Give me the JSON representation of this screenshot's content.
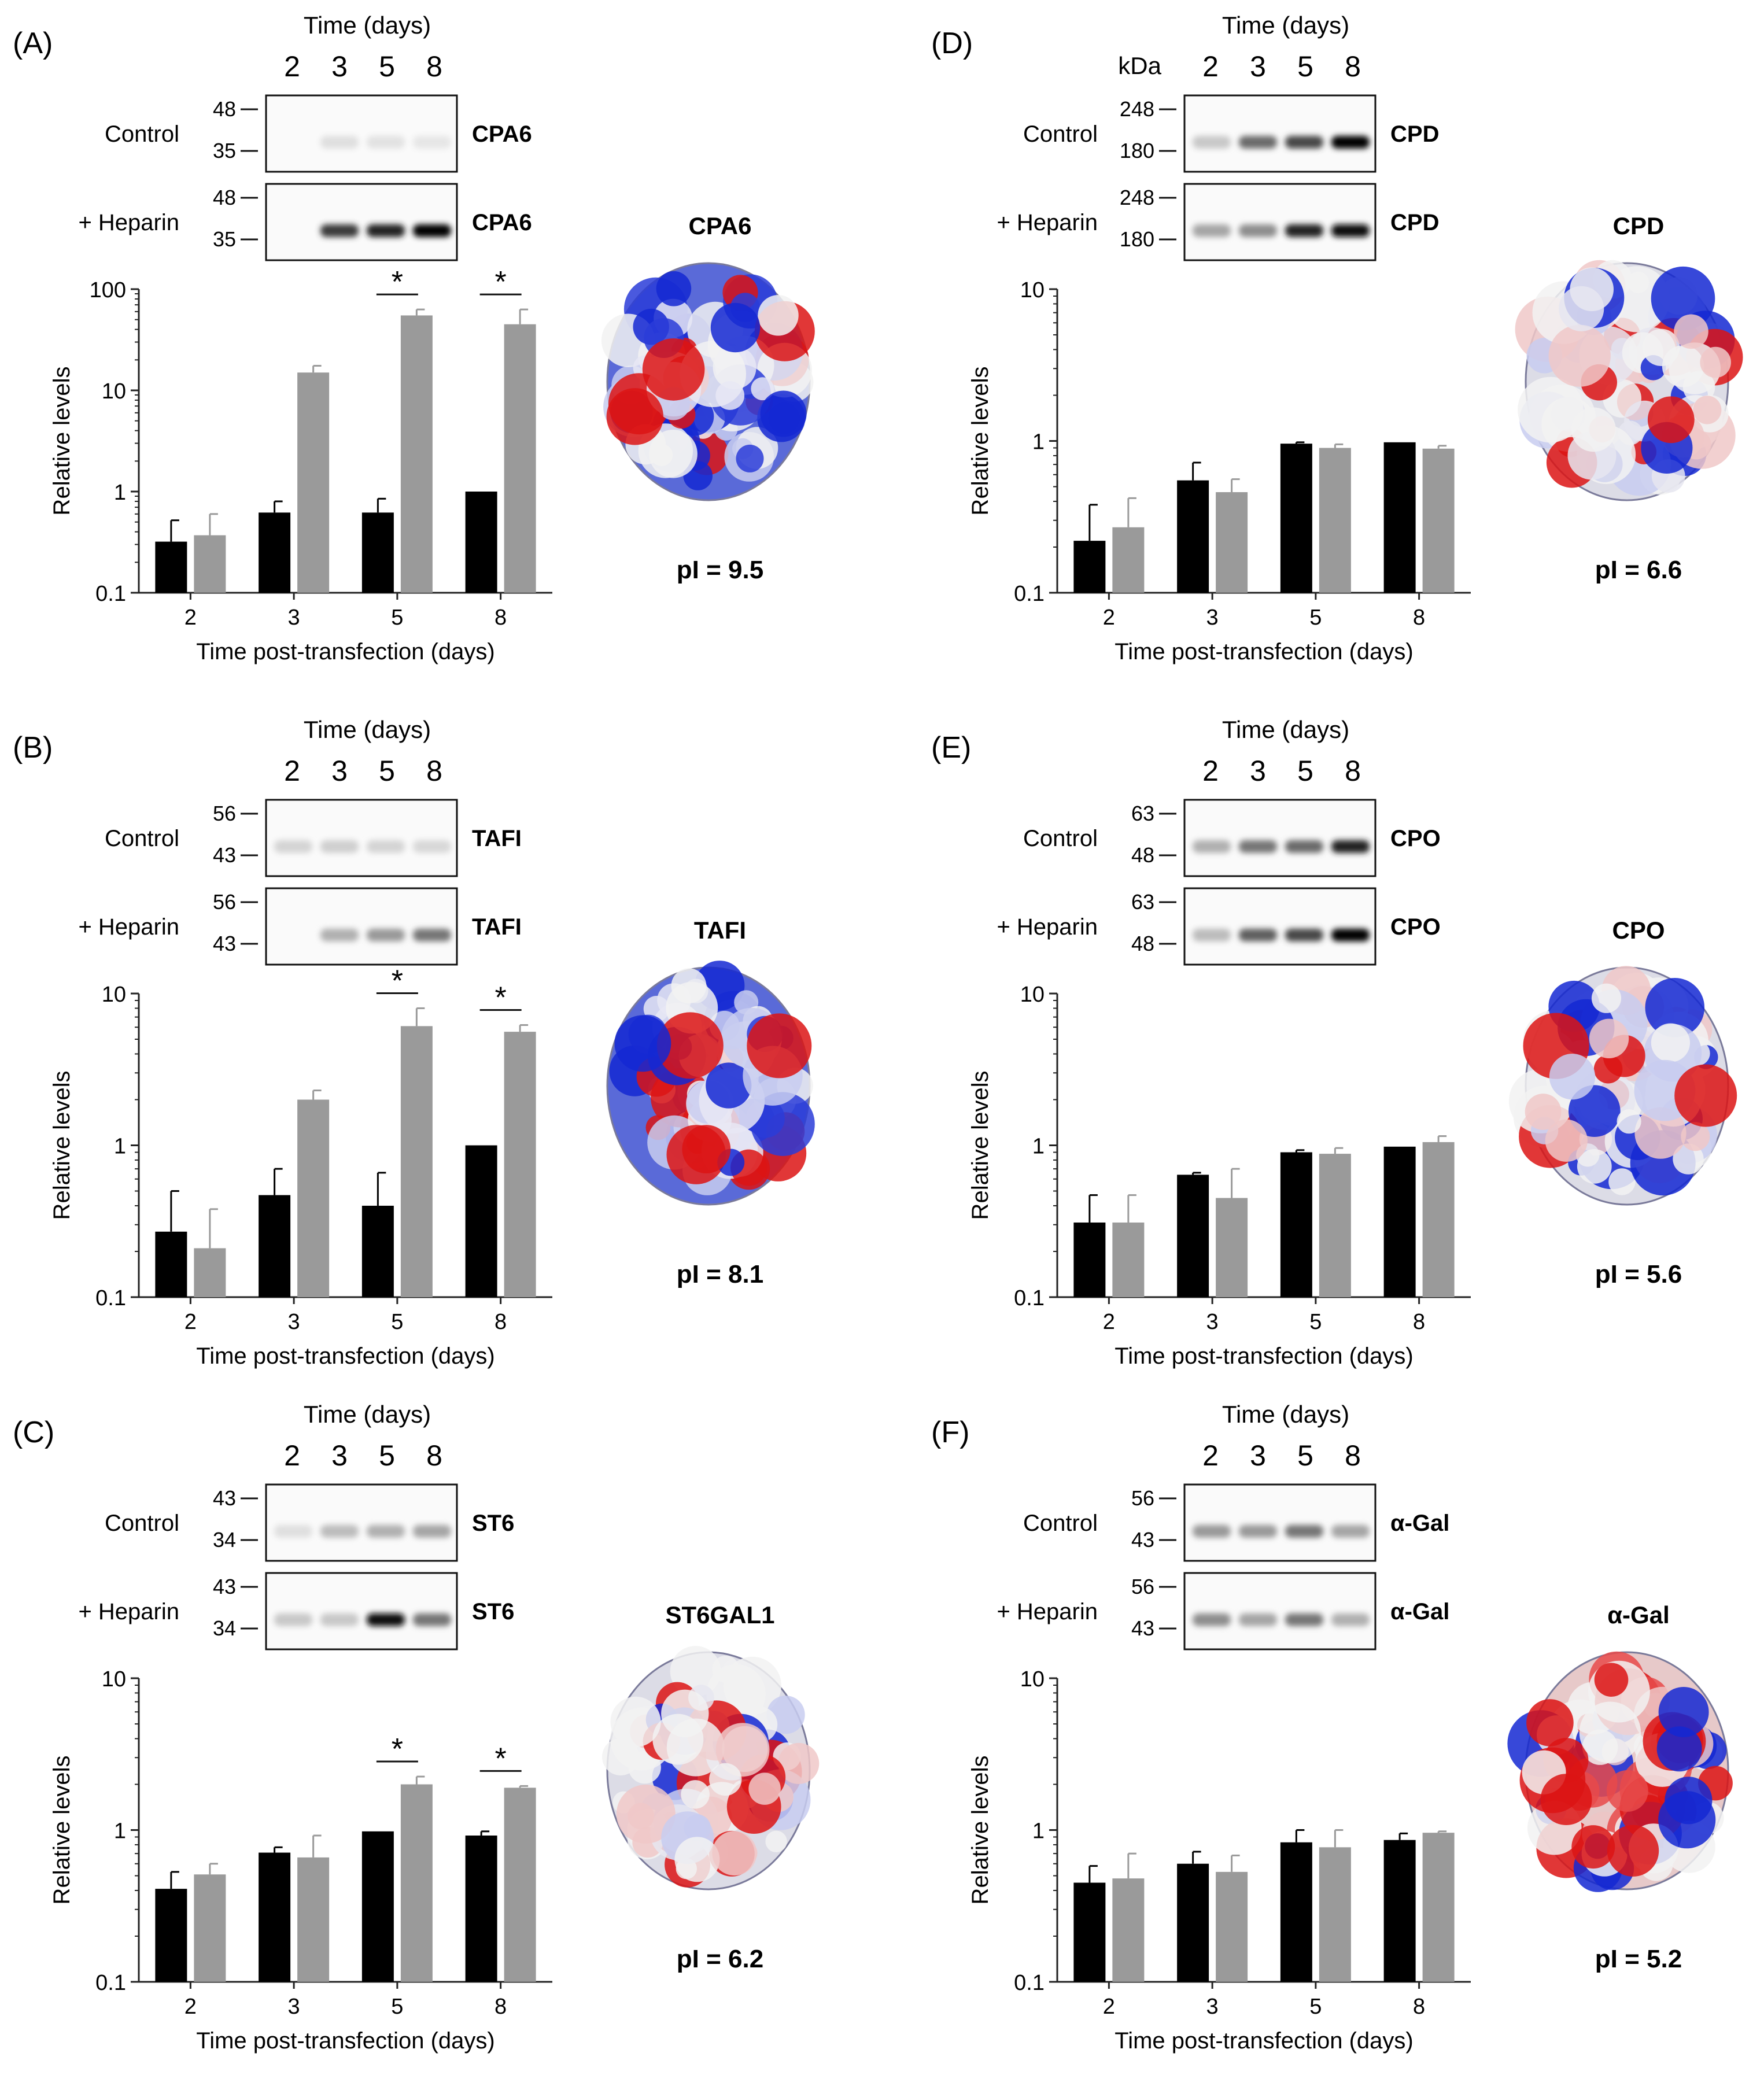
{
  "colors": {
    "control_bar": "#000000",
    "heparin_bar": "#9a9a9a",
    "positive_surface": "#1428d2",
    "negative_surface": "#dc1414",
    "neutral_surface": "#f2f2f2"
  },
  "panels": [
    {
      "letter": "(A)",
      "blot": {
        "time_title": "Time (days)",
        "kda_label": "",
        "lanes": [
          "2",
          "3",
          "5",
          "8"
        ],
        "control": {
          "row_label": "Control",
          "protein": "CPA6",
          "markers": [
            "48",
            "35"
          ],
          "intensity": [
            0.0,
            0.05,
            0.04,
            0.02
          ]
        },
        "heparin": {
          "row_label": "+ Heparin",
          "protein": "CPA6",
          "markers": [
            "48",
            "35"
          ],
          "intensity": [
            0.0,
            0.75,
            0.85,
            1.0
          ]
        }
      },
      "structure": {
        "name": "CPA6",
        "pi_text": "pI = 9.5",
        "charge": "positive"
      },
      "chart_data": {
        "type": "bar",
        "xlabel": "Time post-transfection (days)",
        "ylabel": "Relative levels",
        "yscale": "log",
        "ylim": [
          0.1,
          100
        ],
        "yticks": [
          "0.1",
          "1",
          "10",
          "100"
        ],
        "categories": [
          "2",
          "3",
          "5",
          "8"
        ],
        "series": [
          {
            "color": "#000000",
            "values": [
              0.32,
              0.62,
              0.62,
              1.0
            ],
            "errors_upper": [
              0.52,
              0.8,
              0.85,
              1.0
            ]
          },
          {
            "color": "#9a9a9a",
            "values": [
              0.37,
              15,
              55,
              45
            ],
            "errors_upper": [
              0.6,
              17.5,
              63,
              63
            ]
          }
        ],
        "significance": [
          "",
          "",
          "*",
          "*"
        ]
      }
    },
    {
      "letter": "(B)",
      "blot": {
        "time_title": "Time (days)",
        "kda_label": "",
        "lanes": [
          "2",
          "3",
          "5",
          "8"
        ],
        "control": {
          "row_label": "Control",
          "protein": "TAFI",
          "markers": [
            "56",
            "43"
          ],
          "intensity": [
            0.1,
            0.12,
            0.1,
            0.08
          ]
        },
        "heparin": {
          "row_label": "+ Heparin",
          "protein": "TAFI",
          "markers": [
            "56",
            "43"
          ],
          "intensity": [
            0.0,
            0.25,
            0.35,
            0.5
          ]
        }
      },
      "structure": {
        "name": "TAFI",
        "pi_text": "pI = 8.1",
        "charge": "positive"
      },
      "chart_data": {
        "type": "bar",
        "xlabel": "Time post-transfection (days)",
        "ylabel": "Relative levels",
        "yscale": "log",
        "ylim": [
          0.1,
          10
        ],
        "yticks": [
          "0.1",
          "1",
          "10"
        ],
        "categories": [
          "2",
          "3",
          "5",
          "8"
        ],
        "series": [
          {
            "color": "#000000",
            "values": [
              0.27,
              0.47,
              0.4,
              1.0
            ],
            "errors_upper": [
              0.5,
              0.7,
              0.66,
              1.0
            ]
          },
          {
            "color": "#9a9a9a",
            "values": [
              0.21,
              2.0,
              6.1,
              5.6
            ],
            "errors_upper": [
              0.38,
              2.3,
              8.0,
              6.2
            ]
          }
        ],
        "significance": [
          "",
          "",
          "*",
          "*"
        ]
      }
    },
    {
      "letter": "(C)",
      "blot": {
        "time_title": "Time (days)",
        "kda_label": "",
        "lanes": [
          "2",
          "3",
          "5",
          "8"
        ],
        "control": {
          "row_label": "Control",
          "protein": "ST6",
          "markers": [
            "43",
            "34"
          ],
          "intensity": [
            0.05,
            0.2,
            0.25,
            0.3
          ]
        },
        "heparin": {
          "row_label": "+ Heparin",
          "protein": "ST6",
          "markers": [
            "43",
            "34"
          ],
          "intensity": [
            0.15,
            0.15,
            0.95,
            0.5
          ]
        }
      },
      "structure": {
        "name": "ST6GAL1",
        "pi_text": "pI = 6.2",
        "charge": "mixed"
      },
      "chart_data": {
        "type": "bar",
        "xlabel": "Time post-transfection (days)",
        "ylabel": "Relative levels",
        "yscale": "log",
        "ylim": [
          0.1,
          10
        ],
        "yticks": [
          "0.1",
          "1",
          "10"
        ],
        "categories": [
          "2",
          "3",
          "5",
          "8"
        ],
        "series": [
          {
            "color": "#000000",
            "values": [
              0.41,
              0.71,
              0.98,
              0.92
            ],
            "errors_upper": [
              0.53,
              0.77,
              0.98,
              0.98
            ]
          },
          {
            "color": "#9a9a9a",
            "values": [
              0.51,
              0.66,
              2.0,
              1.9
            ],
            "errors_upper": [
              0.6,
              0.92,
              2.25,
              1.95
            ]
          }
        ],
        "significance": [
          "",
          "",
          "*",
          "*"
        ]
      }
    },
    {
      "letter": "(D)",
      "blot": {
        "time_title": "Time (days)",
        "kda_label": "kDa",
        "lanes": [
          "2",
          "3",
          "5",
          "8"
        ],
        "control": {
          "row_label": "Control",
          "protein": "CPD",
          "markers": [
            "248",
            "180"
          ],
          "intensity": [
            0.15,
            0.55,
            0.7,
            1.0
          ]
        },
        "heparin": {
          "row_label": "+ Heparin",
          "protein": "CPD",
          "markers": [
            "248",
            "180"
          ],
          "intensity": [
            0.3,
            0.4,
            0.85,
            0.95
          ]
        }
      },
      "structure": {
        "name": "CPD",
        "pi_text": "pI = 6.6",
        "charge": "mixed"
      },
      "chart_data": {
        "type": "bar",
        "xlabel": "Time post-transfection (days)",
        "ylabel": "Relative levels",
        "yscale": "log",
        "ylim": [
          0.1,
          10
        ],
        "yticks": [
          "0.1",
          "1",
          "10"
        ],
        "categories": [
          "2",
          "3",
          "5",
          "8"
        ],
        "series": [
          {
            "color": "#000000",
            "values": [
              0.22,
              0.55,
              0.96,
              0.98
            ],
            "errors_upper": [
              0.38,
              0.72,
              0.98,
              0.98
            ]
          },
          {
            "color": "#9a9a9a",
            "values": [
              0.27,
              0.46,
              0.9,
              0.89
            ],
            "errors_upper": [
              0.42,
              0.56,
              0.95,
              0.93
            ]
          }
        ],
        "significance": [
          "",
          "",
          "",
          ""
        ]
      }
    },
    {
      "letter": "(E)",
      "blot": {
        "time_title": "Time (days)",
        "kda_label": "",
        "lanes": [
          "2",
          "3",
          "5",
          "8"
        ],
        "control": {
          "row_label": "Control",
          "protein": "CPO",
          "markers": [
            "63",
            "48"
          ],
          "intensity": [
            0.25,
            0.5,
            0.55,
            0.85
          ]
        },
        "heparin": {
          "row_label": "+ Heparin",
          "protein": "CPO",
          "markers": [
            "63",
            "48"
          ],
          "intensity": [
            0.2,
            0.6,
            0.7,
            1.0
          ]
        }
      },
      "structure": {
        "name": "CPO",
        "pi_text": "pI = 5.6",
        "charge": "mixed"
      },
      "chart_data": {
        "type": "bar",
        "xlabel": "Time post-transfection (days)",
        "ylabel": "Relative levels",
        "yscale": "log",
        "ylim": [
          0.1,
          10
        ],
        "yticks": [
          "0.1",
          "1",
          "10"
        ],
        "categories": [
          "2",
          "3",
          "5",
          "8"
        ],
        "series": [
          {
            "color": "#000000",
            "values": [
              0.31,
              0.64,
              0.9,
              0.98
            ],
            "errors_upper": [
              0.47,
              0.66,
              0.93,
              0.98
            ]
          },
          {
            "color": "#9a9a9a",
            "values": [
              0.31,
              0.45,
              0.88,
              1.05
            ],
            "errors_upper": [
              0.47,
              0.7,
              0.96,
              1.15
            ]
          }
        ],
        "significance": [
          "",
          "",
          "",
          ""
        ]
      }
    },
    {
      "letter": "(F)",
      "blot": {
        "time_title": "Time (days)",
        "kda_label": "",
        "lanes": [
          "2",
          "3",
          "5",
          "8"
        ],
        "control": {
          "row_label": "Control",
          "protein": "α-Gal",
          "markers": [
            "56",
            "43"
          ],
          "intensity": [
            0.35,
            0.35,
            0.5,
            0.3
          ]
        },
        "heparin": {
          "row_label": "+ Heparin",
          "protein": "α-Gal",
          "markers": [
            "56",
            "43"
          ],
          "intensity": [
            0.4,
            0.3,
            0.5,
            0.25
          ]
        }
      },
      "structure": {
        "name": "α-Gal",
        "pi_text": "pI = 5.2",
        "charge": "negative"
      },
      "chart_data": {
        "type": "bar",
        "xlabel": "Time post-transfection (days)",
        "ylabel": "Relative levels",
        "yscale": "log",
        "ylim": [
          0.1,
          10
        ],
        "yticks": [
          "0.1",
          "1",
          "10"
        ],
        "categories": [
          "2",
          "3",
          "5",
          "8"
        ],
        "series": [
          {
            "color": "#000000",
            "values": [
              0.45,
              0.6,
              0.83,
              0.86
            ],
            "errors_upper": [
              0.58,
              0.72,
              1.0,
              0.95
            ]
          },
          {
            "color": "#9a9a9a",
            "values": [
              0.48,
              0.53,
              0.77,
              0.96
            ],
            "errors_upper": [
              0.7,
              0.68,
              1.0,
              0.98
            ]
          }
        ],
        "significance": [
          "",
          "",
          "",
          ""
        ]
      }
    }
  ]
}
